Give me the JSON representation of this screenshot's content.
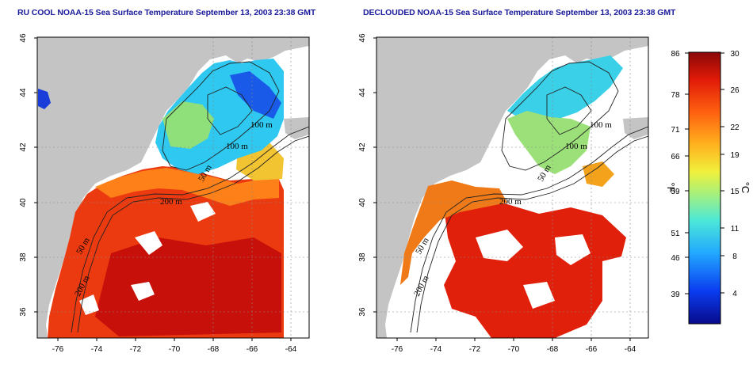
{
  "titles": {
    "left": "RU COOL NOAA-15 Sea Surface Temperature September 13, 2003 23:38 GMT",
    "right": "DECLOUDED NOAA-15 Sea Surface Temperature September 13, 2003 23:38 GMT"
  },
  "axes": {
    "lon_ticks": [
      "-76",
      "-74",
      "-72",
      "-70",
      "-68",
      "-66",
      "-64"
    ],
    "lat_ticks": [
      "36",
      "38",
      "40",
      "42",
      "44",
      "46"
    ]
  },
  "contour_labels": [
    "100 m",
    "100 m",
    "50 m",
    "200 m",
    "50 m",
    "200 m"
  ],
  "colorbar": {
    "celsius_ticks": [
      "30",
      "26",
      "22",
      "19",
      "15",
      "11",
      "8",
      "4"
    ],
    "fahrenheit_ticks": [
      "86",
      "78",
      "71",
      "66",
      "59",
      "51",
      "46",
      "39"
    ],
    "unit_f": "°F",
    "unit_c": "°C",
    "colors": [
      "#080a8a",
      "#0a3cf0",
      "#22a8ff",
      "#4ce8d8",
      "#a8f07a",
      "#f0f03c",
      "#ffb21e",
      "#ff6010",
      "#e01a08",
      "#8a0808"
    ]
  },
  "land_color": "#c4c4c4"
}
